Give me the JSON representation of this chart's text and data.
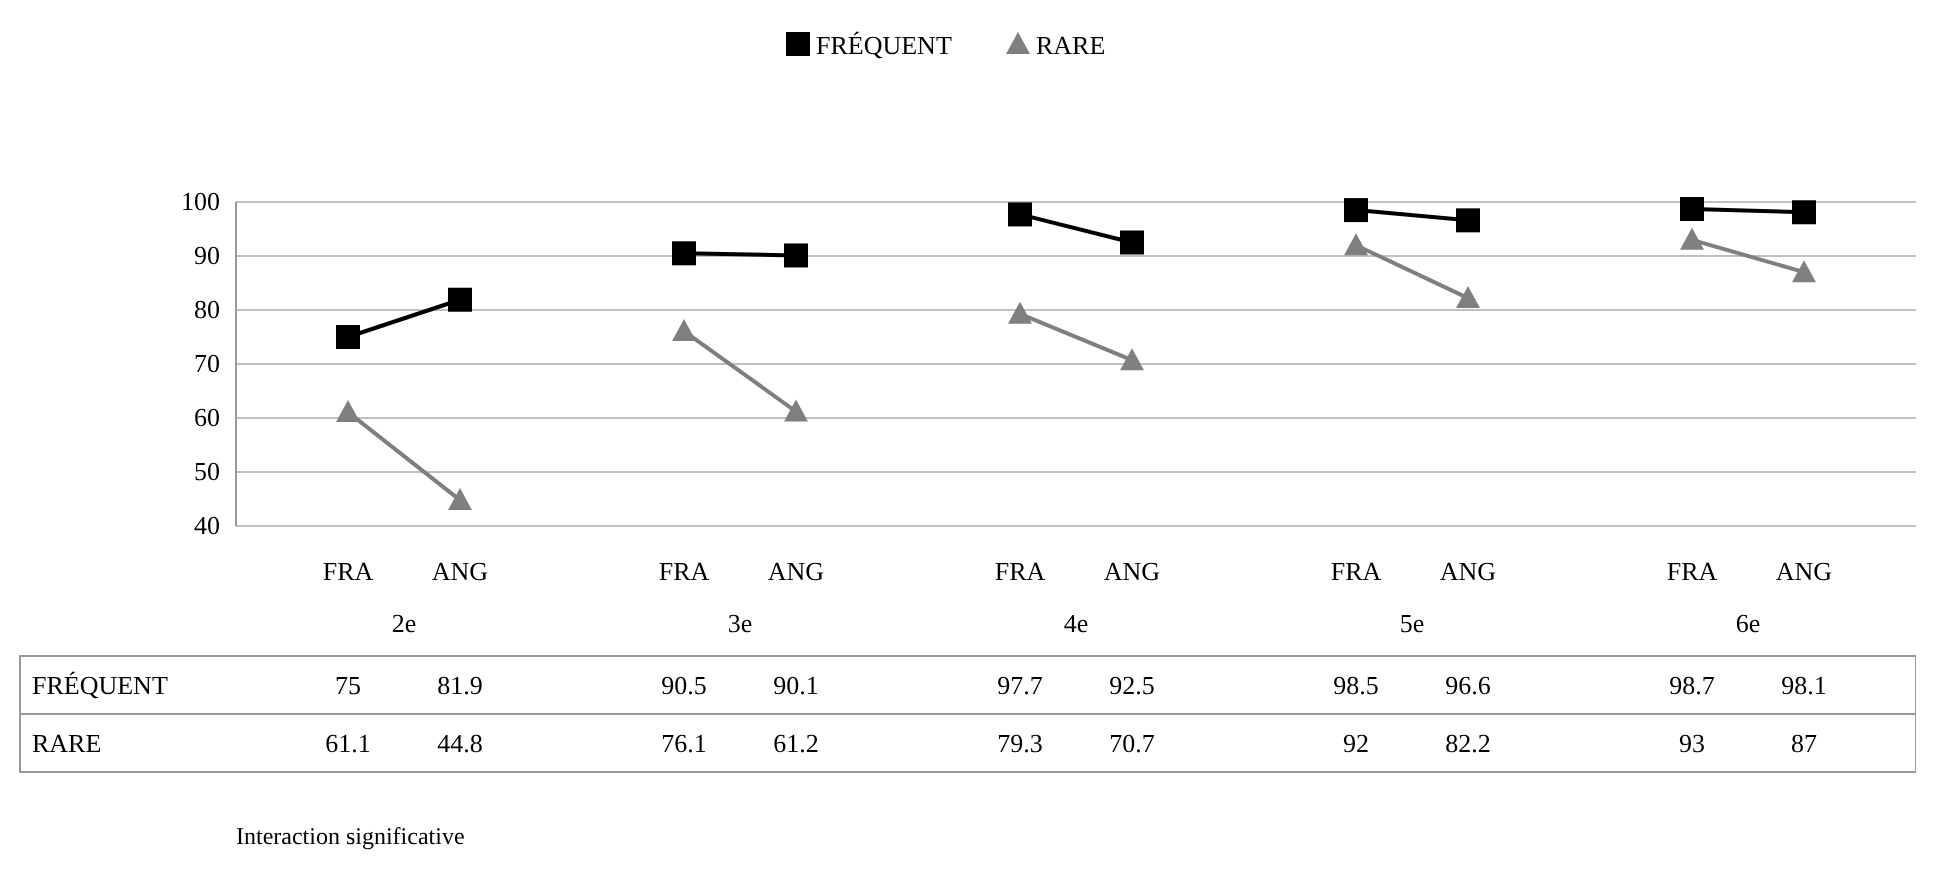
{
  "chart_data": {
    "type": "line",
    "categories": [
      "FRA",
      "ANG",
      "FRA",
      "ANG",
      "FRA",
      "ANG",
      "FRA",
      "ANG",
      "FRA",
      "ANG"
    ],
    "series": [
      {
        "name": "FRÉQUENT",
        "color": "#000000",
        "marker": "square",
        "values": [
          75,
          81.9,
          90.5,
          90.1,
          97.7,
          92.5,
          98.5,
          96.6,
          98.7,
          98.1
        ]
      },
      {
        "name": "RARE",
        "color": "#7f7f7f",
        "marker": "triangle",
        "values": [
          61.1,
          44.8,
          76.1,
          61.2,
          79.3,
          70.7,
          92,
          82.2,
          93,
          87
        ]
      }
    ],
    "ylim": [
      40,
      100
    ],
    "yticks": [
      40,
      50,
      60,
      70,
      80,
      90,
      100
    ],
    "grid": "y",
    "legend": "top",
    "data_labels": true,
    "annotations": [
      "2e",
      "3e",
      "4e",
      "5e",
      "6e",
      "Interaction significative"
    ]
  }
}
